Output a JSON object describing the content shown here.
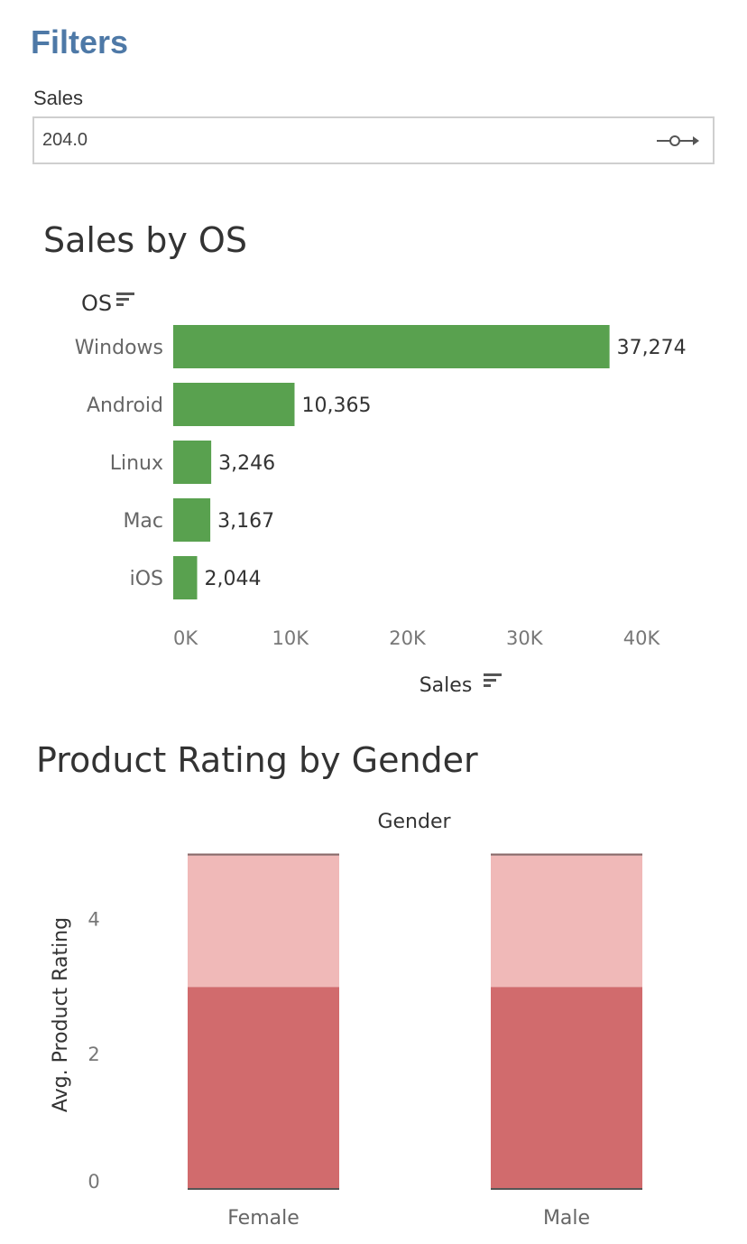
{
  "filters": {
    "title": "Filters",
    "sales_label": "Sales",
    "sales_value": "204.0",
    "slider_icon": "range-slider-icon"
  },
  "colors": {
    "accent": "#4e79a7",
    "bar_green": "#59a14f",
    "rating_dark": "#d16b6d",
    "rating_light": "#f0b9b8",
    "rating_top": "#8a6a6a"
  },
  "chart_data": [
    {
      "type": "bar",
      "orientation": "horizontal",
      "title": "Sales by OS",
      "ylabel": "OS",
      "xlabel": "Sales",
      "sort_icon": "sort-descending-icon",
      "categories": [
        "Windows",
        "Android",
        "Linux",
        "Mac",
        "iOS"
      ],
      "values": [
        37274,
        10365,
        3246,
        3167,
        2044
      ],
      "data_labels": [
        "37,274",
        "10,365",
        "3,246",
        "3,167",
        "2,044"
      ],
      "xlim": [
        0,
        40000
      ],
      "xticks": [
        0,
        10000,
        20000,
        30000,
        40000
      ],
      "xtick_labels": [
        "0K",
        "10K",
        "20K",
        "30K",
        "40K"
      ],
      "grid": false
    },
    {
      "type": "bar",
      "stacked": true,
      "title": "Product Rating by Gender",
      "column_header": "Gender",
      "ylabel": "Avg. Product Rating",
      "categories": [
        "Female",
        "Male"
      ],
      "segments": [
        {
          "color": "#d16b6d",
          "values": [
            3.0,
            3.0
          ]
        },
        {
          "color": "#f0b9b8",
          "values": [
            1.95,
            1.95
          ]
        },
        {
          "color": "#8a6a6a",
          "values": [
            0.03,
            0.03
          ]
        }
      ],
      "ylim": [
        0,
        5
      ],
      "yticks": [
        0,
        2,
        4
      ],
      "ytick_labels": [
        "0",
        "2",
        "4"
      ],
      "grid": false
    }
  ]
}
